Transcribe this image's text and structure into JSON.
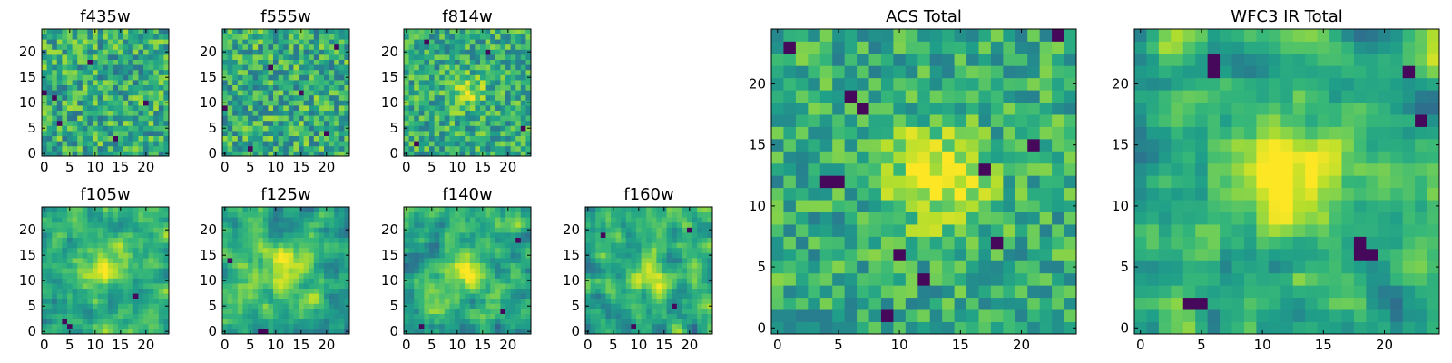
{
  "chart_data": [
    {
      "type": "heatmap",
      "title": "f435w",
      "xticks": [
        "0",
        "5",
        "10",
        "15",
        "20"
      ],
      "yticks": [
        "0",
        "5",
        "10",
        "15",
        "20"
      ],
      "xlim": [
        -0.5,
        24.5
      ],
      "ylim": [
        -0.5,
        24.5
      ],
      "grid": "off",
      "colormap": "viridis",
      "texture": "noise",
      "noise_seed": 11,
      "noise_amplitude": 0.5,
      "blobs": [],
      "dark_pixels": [
        [
          2,
          11
        ],
        [
          0,
          12
        ],
        [
          14,
          3
        ],
        [
          20,
          10
        ],
        [
          9,
          18
        ],
        [
          3,
          6
        ]
      ]
    },
    {
      "type": "heatmap",
      "title": "f555w",
      "xticks": [
        "0",
        "5",
        "10",
        "15",
        "20"
      ],
      "yticks": [
        "0",
        "5",
        "10",
        "15",
        "20"
      ],
      "xlim": [
        -0.5,
        24.5
      ],
      "ylim": [
        -0.5,
        24.5
      ],
      "grid": "off",
      "colormap": "viridis",
      "texture": "noise",
      "noise_seed": 23,
      "noise_amplitude": 0.5,
      "blobs": [],
      "dark_pixels": [
        [
          5,
          1
        ],
        [
          20,
          4
        ],
        [
          9,
          17
        ],
        [
          22,
          21
        ],
        [
          0,
          9
        ],
        [
          15,
          12
        ]
      ]
    },
    {
      "type": "heatmap",
      "title": "f814w",
      "xticks": [
        "0",
        "5",
        "10",
        "15",
        "20"
      ],
      "yticks": [
        "0",
        "5",
        "10",
        "15",
        "20"
      ],
      "xlim": [
        -0.5,
        24.5
      ],
      "ylim": [
        -0.5,
        24.5
      ],
      "grid": "off",
      "colormap": "viridis",
      "texture": "noise",
      "noise_seed": 37,
      "noise_amplitude": 0.45,
      "blobs": [
        {
          "cx": 12,
          "cy": 12,
          "sigma": 2.2,
          "amp": 0.3
        }
      ],
      "dark_pixels": [
        [
          2,
          2
        ],
        [
          23,
          5
        ],
        [
          16,
          20
        ],
        [
          4,
          22
        ]
      ]
    },
    {
      "type": "heatmap",
      "title": "f105w",
      "xticks": [
        "0",
        "5",
        "10",
        "15",
        "20"
      ],
      "yticks": [
        "0",
        "5",
        "10",
        "15",
        "20"
      ],
      "xlim": [
        -0.5,
        24.5
      ],
      "ylim": [
        -0.5,
        24.5
      ],
      "grid": "off",
      "colormap": "viridis",
      "texture": "smooth",
      "noise_seed": 41,
      "noise_amplitude": 0.4,
      "blobs": [
        {
          "cx": 12,
          "cy": 13,
          "sigma": 3,
          "amp": 0.35
        }
      ],
      "dark_pixels": [
        [
          4,
          2
        ],
        [
          5,
          1
        ],
        [
          18,
          7
        ]
      ]
    },
    {
      "type": "heatmap",
      "title": "f125w",
      "xticks": [
        "0",
        "5",
        "10",
        "15",
        "20"
      ],
      "yticks": [
        "0",
        "5",
        "10",
        "15",
        "20"
      ],
      "xlim": [
        -0.5,
        24.5
      ],
      "ylim": [
        -0.5,
        24.5
      ],
      "grid": "off",
      "colormap": "viridis",
      "texture": "smooth",
      "noise_seed": 53,
      "noise_amplitude": 0.4,
      "blobs": [
        {
          "cx": 12,
          "cy": 12,
          "sigma": 3.5,
          "amp": 0.3
        }
      ],
      "dark_pixels": [
        [
          7,
          0
        ],
        [
          8,
          0
        ],
        [
          1,
          14
        ]
      ]
    },
    {
      "type": "heatmap",
      "title": "f140w",
      "xticks": [
        "0",
        "5",
        "10",
        "15",
        "20"
      ],
      "yticks": [
        "0",
        "5",
        "10",
        "15",
        "20"
      ],
      "xlim": [
        -0.5,
        24.5
      ],
      "ylim": [
        -0.5,
        24.5
      ],
      "grid": "off",
      "colormap": "viridis",
      "texture": "smooth",
      "noise_seed": 67,
      "noise_amplitude": 0.45,
      "blobs": [
        {
          "cx": 11,
          "cy": 12,
          "sigma": 2.8,
          "amp": 0.35
        }
      ],
      "dark_pixels": [
        [
          19,
          4
        ],
        [
          3,
          1
        ],
        [
          22,
          18
        ]
      ]
    },
    {
      "type": "heatmap",
      "title": "f160w",
      "xticks": [
        "0",
        "5",
        "10",
        "15",
        "20"
      ],
      "yticks": [
        "0",
        "5",
        "10",
        "15",
        "20"
      ],
      "xlim": [
        -0.5,
        24.5
      ],
      "ylim": [
        -0.5,
        24.5
      ],
      "grid": "off",
      "colormap": "viridis",
      "texture": "smooth",
      "noise_seed": 79,
      "noise_amplitude": 0.45,
      "blobs": [
        {
          "cx": 12,
          "cy": 11,
          "sigma": 3,
          "amp": 0.3
        }
      ],
      "dark_pixels": [
        [
          3,
          19
        ],
        [
          20,
          20
        ],
        [
          9,
          1
        ],
        [
          17,
          5
        ]
      ]
    },
    {
      "type": "heatmap",
      "title": "ACS Total",
      "xticks": [
        "0",
        "5",
        "10",
        "15",
        "20"
      ],
      "yticks": [
        "0",
        "5",
        "10",
        "15",
        "20"
      ],
      "xlim": [
        -0.5,
        24.5
      ],
      "ylim": [
        -0.5,
        24.5
      ],
      "grid": "off",
      "colormap": "viridis",
      "texture": "noise",
      "noise_seed": 97,
      "noise_amplitude": 0.4,
      "blobs": [
        {
          "cx": 13,
          "cy": 12.5,
          "sigma": 2.8,
          "amp": 0.4
        }
      ],
      "dark_pixels": [
        [
          1,
          23
        ],
        [
          23,
          24
        ],
        [
          5,
          12
        ],
        [
          4,
          12
        ],
        [
          6,
          19
        ],
        [
          7,
          18
        ],
        [
          17,
          13
        ],
        [
          10,
          6
        ],
        [
          18,
          7
        ],
        [
          12,
          4
        ],
        [
          9,
          1
        ],
        [
          21,
          15
        ]
      ]
    },
    {
      "type": "heatmap",
      "title": "WFC3 IR Total",
      "xticks": [
        "0",
        "5",
        "10",
        "15",
        "20"
      ],
      "yticks": [
        "0",
        "5",
        "10",
        "15",
        "20"
      ],
      "xlim": [
        -0.5,
        24.5
      ],
      "ylim": [
        -0.5,
        24.5
      ],
      "grid": "off",
      "colormap": "viridis",
      "texture": "smooth",
      "noise_seed": 113,
      "noise_amplitude": 0.45,
      "blobs": [
        {
          "cx": 12,
          "cy": 12.5,
          "sigma": 3.2,
          "amp": 0.4
        }
      ],
      "dark_pixels": [
        [
          6,
          21
        ],
        [
          6,
          22
        ],
        [
          18,
          6
        ],
        [
          19,
          6
        ],
        [
          18,
          7
        ],
        [
          4,
          2
        ],
        [
          5,
          2
        ],
        [
          23,
          17
        ],
        [
          22,
          21
        ]
      ]
    }
  ]
}
